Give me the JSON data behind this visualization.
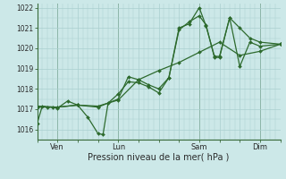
{
  "title": "",
  "xlabel": "Pression niveau de la mer( hPa )",
  "bg_color": "#cce8e8",
  "grid_color": "#aacfcf",
  "line_color": "#2d6a2d",
  "marker_color": "#2d6a2d",
  "ylim": [
    1015.5,
    1022.2
  ],
  "yticks": [
    1016,
    1017,
    1018,
    1019,
    1020,
    1021,
    1022
  ],
  "xtick_labels": [
    "Ven",
    "Lun",
    "Sam",
    "Dim"
  ],
  "xtick_positions": [
    24,
    96,
    192,
    264
  ],
  "xlim": [
    0,
    288
  ],
  "vline_positions": [
    24,
    96,
    192,
    264
  ],
  "series1": [
    [
      0,
      1016.3
    ],
    [
      6,
      1017.15
    ],
    [
      12,
      1017.1
    ],
    [
      18,
      1017.1
    ],
    [
      24,
      1017.05
    ],
    [
      36,
      1017.4
    ],
    [
      48,
      1017.2
    ],
    [
      60,
      1016.6
    ],
    [
      72,
      1015.8
    ],
    [
      78,
      1015.75
    ],
    [
      84,
      1017.3
    ],
    [
      96,
      1017.75
    ],
    [
      108,
      1018.35
    ],
    [
      120,
      1018.3
    ],
    [
      132,
      1018.1
    ],
    [
      144,
      1017.8
    ],
    [
      156,
      1018.55
    ],
    [
      168,
      1020.9
    ],
    [
      180,
      1021.3
    ],
    [
      192,
      1021.6
    ],
    [
      200,
      1021.15
    ],
    [
      210,
      1019.55
    ],
    [
      216,
      1019.55
    ],
    [
      228,
      1021.5
    ],
    [
      240,
      1019.1
    ],
    [
      252,
      1020.3
    ],
    [
      264,
      1020.1
    ],
    [
      288,
      1020.2
    ]
  ],
  "series2": [
    [
      0,
      1017.15
    ],
    [
      24,
      1017.1
    ],
    [
      48,
      1017.2
    ],
    [
      72,
      1017.15
    ],
    [
      96,
      1017.45
    ],
    [
      120,
      1018.45
    ],
    [
      144,
      1018.9
    ],
    [
      168,
      1019.3
    ],
    [
      192,
      1019.8
    ],
    [
      216,
      1020.3
    ],
    [
      240,
      1019.65
    ],
    [
      264,
      1019.85
    ],
    [
      288,
      1020.2
    ]
  ],
  "series3": [
    [
      0,
      1017.1
    ],
    [
      24,
      1017.1
    ],
    [
      48,
      1017.2
    ],
    [
      72,
      1017.1
    ],
    [
      96,
      1017.5
    ],
    [
      108,
      1018.6
    ],
    [
      120,
      1018.45
    ],
    [
      132,
      1018.2
    ],
    [
      144,
      1018.0
    ],
    [
      156,
      1018.55
    ],
    [
      168,
      1021.0
    ],
    [
      180,
      1021.2
    ],
    [
      192,
      1022.0
    ],
    [
      200,
      1021.1
    ],
    [
      210,
      1019.6
    ],
    [
      216,
      1019.6
    ],
    [
      228,
      1021.5
    ],
    [
      240,
      1021.0
    ],
    [
      252,
      1020.5
    ],
    [
      264,
      1020.3
    ],
    [
      288,
      1020.2
    ]
  ]
}
